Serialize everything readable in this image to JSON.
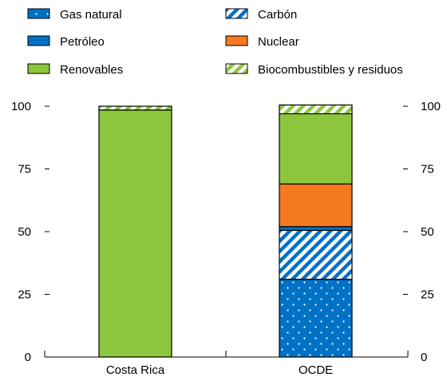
{
  "chart_data": {
    "type": "bar",
    "stacked": true,
    "categories": [
      "Costa Rica",
      "OCDE"
    ],
    "ylim": [
      0,
      100
    ],
    "yticks": [
      0,
      25,
      50,
      75,
      100
    ],
    "ytick_labels": [
      "0",
      "25",
      "50",
      "75",
      "100"
    ],
    "legend_position": "top",
    "grid": false,
    "series": [
      {
        "name": "Gas natural",
        "values": [
          0,
          31
        ],
        "color": "#0072c6",
        "pattern": "dots"
      },
      {
        "name": "Carbón",
        "values": [
          0,
          19.5
        ],
        "color": "#0072c6",
        "pattern": "diagonal-stripes"
      },
      {
        "name": "Petróleo",
        "values": [
          0,
          1.5
        ],
        "color": "#0072c6",
        "pattern": "solid"
      },
      {
        "name": "Nuclear",
        "values": [
          0,
          17
        ],
        "color": "#f47920",
        "pattern": "solid"
      },
      {
        "name": "Renovables",
        "values": [
          98.5,
          28
        ],
        "color": "#8cc63f",
        "pattern": "solid"
      },
      {
        "name": "Biocombustibles y residuos",
        "values": [
          1.5,
          3.5
        ],
        "color": "#8cc63f",
        "pattern": "diagonal-stripes"
      }
    ],
    "legend_order": [
      "Gas natural",
      "Carbón",
      "Petróleo",
      "Nuclear",
      "Renovables",
      "Biocombustibles y residuos"
    ]
  }
}
